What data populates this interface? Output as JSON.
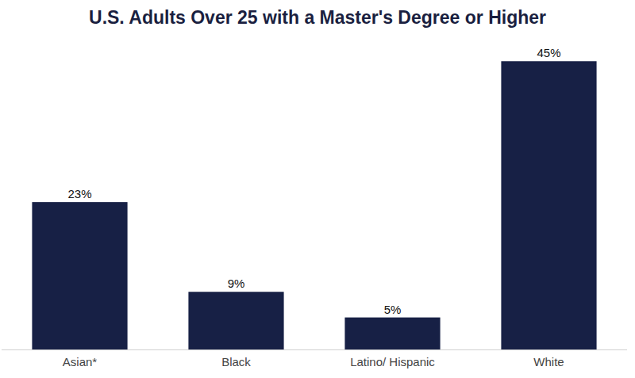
{
  "chart_data": {
    "type": "bar",
    "title": "U.S. Adults Over 25 with a Master's Degree or Higher",
    "categories": [
      "Asian*",
      "Black",
      "Latino/ Hispanic",
      "White"
    ],
    "values": [
      23,
      9,
      5,
      45
    ],
    "value_labels": [
      "23%",
      "9%",
      "5%",
      "45%"
    ],
    "color": "#172045",
    "ylim": [
      0,
      48
    ],
    "data_labels": true,
    "tick_labels": "x"
  }
}
